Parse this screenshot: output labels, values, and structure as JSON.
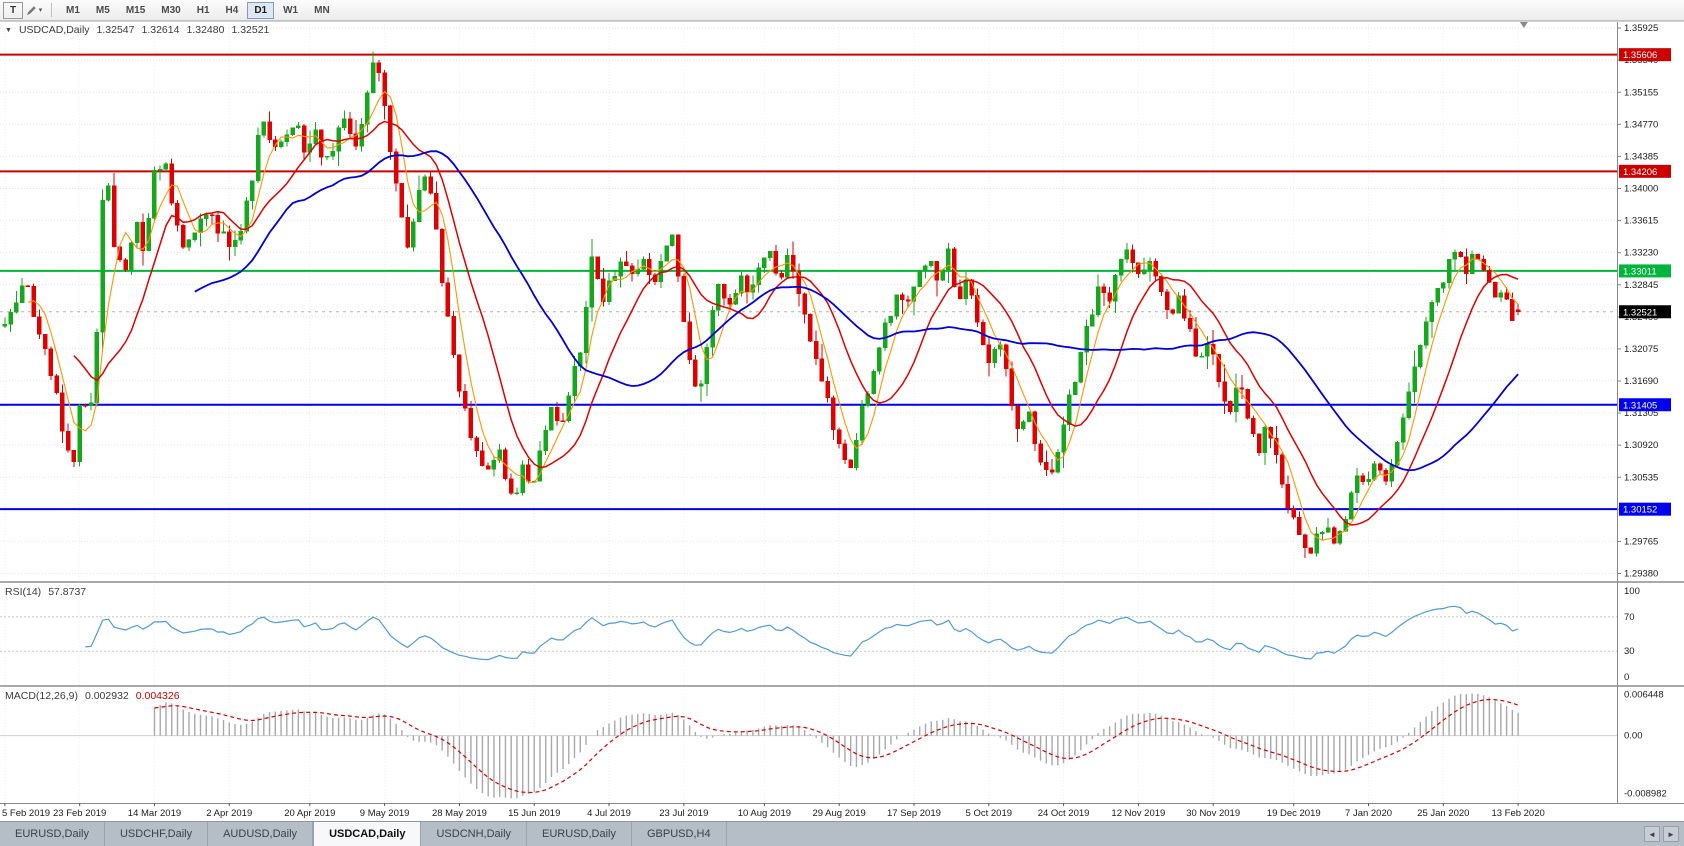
{
  "toolbar": {
    "text_tool_glyph": "T",
    "draw_tool_caret": "▾",
    "timeframes": [
      "M1",
      "M5",
      "M15",
      "M30",
      "H1",
      "H4",
      "D1",
      "W1",
      "MN"
    ],
    "active_timeframe": "D1"
  },
  "chart": {
    "header": {
      "collapse_glyph": "▼",
      "symbol_label": "USDCAD,Daily",
      "open": "1.32547",
      "high": "1.32614",
      "low": "1.32480",
      "close": "1.32521"
    },
    "current_price_label": "1.32521"
  },
  "rsi_panel": {
    "name_label": "RSI(14)",
    "value_label": "57.8737",
    "axis_labels": [
      "100",
      "70",
      "30",
      "0"
    ]
  },
  "macd_panel": {
    "name_label": "MACD(12,26,9)",
    "main_value_label": "0.002932",
    "signal_value_label": "0.004326",
    "axis_labels": [
      "0.006448",
      "0.00",
      "-0.008982"
    ]
  },
  "tabs": {
    "items": [
      "EURUSD,Daily",
      "USDCHF,Daily",
      "AUDUSD,Daily",
      "USDCAD,Daily",
      "USDCNH,Daily",
      "EURUSD,Daily",
      "GBPUSD,H4"
    ],
    "active_index": 3,
    "scroll_left_glyph": "◄",
    "scroll_right_glyph": "►"
  },
  "chart_data": {
    "type": "candlestick",
    "symbol": "USDCAD",
    "timeframe": "Daily",
    "current_price": 1.32521,
    "last_candle": {
      "open": 1.32547,
      "high": 1.32614,
      "low": 1.3248,
      "close": 1.32521
    },
    "y_axis": {
      "min": 1.2929,
      "max": 1.3601,
      "labels": [
        "1.35925",
        "1.35540",
        "1.35155",
        "1.34770",
        "1.34385",
        "1.34000",
        "1.33615",
        "1.33230",
        "1.32845",
        "1.32460",
        "1.32075",
        "1.31690",
        "1.31305",
        "1.30920",
        "1.30535",
        "1.30150",
        "1.29765",
        "1.29380"
      ]
    },
    "x_axis_labels": [
      "5 Feb 2019",
      "23 Feb 2019",
      "14 Mar 2019",
      "2 Apr 2019",
      "20 Apr 2019",
      "9 May 2019",
      "28 May 2019",
      "15 Jun 2019",
      "4 Jul 2019",
      "23 Jul 2019",
      "10 Aug 2019",
      "29 Aug 2019",
      "17 Sep 2019",
      "5 Oct 2019",
      "24 Oct 2019",
      "12 Nov 2019",
      "30 Nov 2019",
      "19 Dec 2019",
      "7 Jan 2020",
      "25 Jan 2020",
      "13 Feb 2020"
    ],
    "levels": [
      {
        "price": 1.35606,
        "label": "1.35606",
        "color": "#cc0000"
      },
      {
        "price": 1.34206,
        "label": "1.34206",
        "color": "#cc0000"
      },
      {
        "price": 1.33011,
        "label": "1.33011",
        "color": "#00b43c"
      },
      {
        "price": 1.31405,
        "label": "1.31405",
        "color": "#0000ee"
      },
      {
        "price": 1.30152,
        "label": "1.30152",
        "color": "#0000ee"
      }
    ],
    "moving_averages": [
      {
        "period": 5,
        "color": "#ff9500"
      },
      {
        "period": 13,
        "color": "#e00000"
      },
      {
        "period": 34,
        "color": "#0000d8"
      }
    ],
    "rsi": {
      "period": 14,
      "value": 57.8737,
      "range": [
        0,
        100
      ],
      "guide_levels": [
        70,
        30
      ],
      "color": "#4f9bd8"
    },
    "macd": {
      "fast": 12,
      "slow": 26,
      "signal": 9,
      "main_value": 0.002932,
      "signal_value": 0.004326,
      "range": [
        -0.0097,
        0.0068
      ],
      "hist_color": "#a8a8a8",
      "signal_color": "#d40000"
    },
    "style": {
      "bull": "#14a81c",
      "bear": "#e00000",
      "current_price_box": "#000000"
    },
    "candle_count": 264,
    "noise_seed": 42,
    "noise_amplitude": 0.0018,
    "wick_amplitude": 0.0022,
    "clamp": [
      1.2936,
      1.3568
    ],
    "price_waypoints": [
      [
        0.0,
        1.3235
      ],
      [
        0.013,
        1.329
      ],
      [
        0.028,
        1.32
      ],
      [
        0.04,
        1.31
      ],
      [
        0.046,
        1.3078
      ],
      [
        0.051,
        1.3158
      ],
      [
        0.056,
        1.3108
      ],
      [
        0.062,
        1.326
      ],
      [
        0.066,
        1.3452
      ],
      [
        0.072,
        1.3335
      ],
      [
        0.079,
        1.329
      ],
      [
        0.086,
        1.3362
      ],
      [
        0.092,
        1.333
      ],
      [
        0.099,
        1.342
      ],
      [
        0.106,
        1.3442
      ],
      [
        0.112,
        1.336
      ],
      [
        0.119,
        1.3322
      ],
      [
        0.125,
        1.3352
      ],
      [
        0.132,
        1.3372
      ],
      [
        0.139,
        1.3356
      ],
      [
        0.145,
        1.334
      ],
      [
        0.152,
        1.3332
      ],
      [
        0.158,
        1.3362
      ],
      [
        0.165,
        1.3425
      ],
      [
        0.17,
        1.3492
      ],
      [
        0.177,
        1.3442
      ],
      [
        0.184,
        1.3462
      ],
      [
        0.191,
        1.3482
      ],
      [
        0.198,
        1.345
      ],
      [
        0.205,
        1.3472
      ],
      [
        0.211,
        1.3432
      ],
      [
        0.218,
        1.3452
      ],
      [
        0.224,
        1.3482
      ],
      [
        0.232,
        1.3442
      ],
      [
        0.239,
        1.3502
      ],
      [
        0.244,
        1.3556
      ],
      [
        0.25,
        1.3508
      ],
      [
        0.255,
        1.344
      ],
      [
        0.261,
        1.3378
      ],
      [
        0.266,
        1.333
      ],
      [
        0.272,
        1.3388
      ],
      [
        0.279,
        1.3418
      ],
      [
        0.285,
        1.3348
      ],
      [
        0.29,
        1.3282
      ],
      [
        0.296,
        1.3202
      ],
      [
        0.301,
        1.315
      ],
      [
        0.307,
        1.3112
      ],
      [
        0.314,
        1.308
      ],
      [
        0.32,
        1.3052
      ],
      [
        0.327,
        1.3092
      ],
      [
        0.333,
        1.304
      ],
      [
        0.338,
        1.3022
      ],
      [
        0.343,
        1.3072
      ],
      [
        0.349,
        1.3042
      ],
      [
        0.355,
        1.3092
      ],
      [
        0.362,
        1.3142
      ],
      [
        0.368,
        1.3112
      ],
      [
        0.375,
        1.3172
      ],
      [
        0.382,
        1.3225
      ],
      [
        0.388,
        1.3312
      ],
      [
        0.395,
        1.3262
      ],
      [
        0.401,
        1.3292
      ],
      [
        0.408,
        1.3322
      ],
      [
        0.415,
        1.3288
      ],
      [
        0.421,
        1.332
      ],
      [
        0.428,
        1.3282
      ],
      [
        0.434,
        1.3312
      ],
      [
        0.441,
        1.3338
      ],
      [
        0.448,
        1.3252
      ],
      [
        0.454,
        1.3172
      ],
      [
        0.459,
        1.3148
      ],
      [
        0.465,
        1.3225
      ],
      [
        0.472,
        1.3282
      ],
      [
        0.479,
        1.3252
      ],
      [
        0.485,
        1.3292
      ],
      [
        0.492,
        1.3272
      ],
      [
        0.498,
        1.3302
      ],
      [
        0.505,
        1.3332
      ],
      [
        0.512,
        1.3292
      ],
      [
        0.518,
        1.3322
      ],
      [
        0.525,
        1.3278
      ],
      [
        0.531,
        1.3232
      ],
      [
        0.538,
        1.3182
      ],
      [
        0.545,
        1.3132
      ],
      [
        0.551,
        1.3088
      ],
      [
        0.558,
        1.3058
      ],
      [
        0.564,
        1.3112
      ],
      [
        0.571,
        1.3162
      ],
      [
        0.578,
        1.3208
      ],
      [
        0.584,
        1.3248
      ],
      [
        0.591,
        1.3282
      ],
      [
        0.597,
        1.3258
      ],
      [
        0.604,
        1.3292
      ],
      [
        0.611,
        1.3312
      ],
      [
        0.617,
        1.3288
      ],
      [
        0.624,
        1.3322
      ],
      [
        0.63,
        1.3262
      ],
      [
        0.637,
        1.3292
      ],
      [
        0.644,
        1.3232
      ],
      [
        0.65,
        1.3188
      ],
      [
        0.657,
        1.3222
      ],
      [
        0.663,
        1.3162
      ],
      [
        0.67,
        1.3108
      ],
      [
        0.677,
        1.3138
      ],
      [
        0.683,
        1.3078
      ],
      [
        0.69,
        1.305
      ],
      [
        0.697,
        1.3092
      ],
      [
        0.703,
        1.3142
      ],
      [
        0.71,
        1.3192
      ],
      [
        0.717,
        1.3242
      ],
      [
        0.723,
        1.3282
      ],
      [
        0.73,
        1.3262
      ],
      [
        0.736,
        1.3302
      ],
      [
        0.743,
        1.3332
      ],
      [
        0.75,
        1.3292
      ],
      [
        0.756,
        1.3322
      ],
      [
        0.763,
        1.3282
      ],
      [
        0.769,
        1.3246
      ],
      [
        0.776,
        1.3272
      ],
      [
        0.783,
        1.3232
      ],
      [
        0.789,
        1.3196
      ],
      [
        0.796,
        1.3222
      ],
      [
        0.802,
        1.3172
      ],
      [
        0.809,
        1.3132
      ],
      [
        0.815,
        1.3166
      ],
      [
        0.822,
        1.3122
      ],
      [
        0.828,
        1.3082
      ],
      [
        0.835,
        1.3116
      ],
      [
        0.841,
        1.3072
      ],
      [
        0.848,
        1.3022
      ],
      [
        0.854,
        1.2982
      ],
      [
        0.861,
        1.2962
      ],
      [
        0.867,
        1.2978
      ],
      [
        0.874,
        1.2996
      ],
      [
        0.88,
        1.2966
      ],
      [
        0.887,
        1.3012
      ],
      [
        0.893,
        1.3062
      ],
      [
        0.9,
        1.3042
      ],
      [
        0.906,
        1.3072
      ],
      [
        0.913,
        1.3052
      ],
      [
        0.92,
        1.3102
      ],
      [
        0.93,
        1.3172
      ],
      [
        0.94,
        1.3242
      ],
      [
        0.95,
        1.3292
      ],
      [
        0.958,
        1.3322
      ],
      [
        0.966,
        1.3302
      ],
      [
        0.972,
        1.333
      ],
      [
        0.978,
        1.3302
      ],
      [
        0.984,
        1.3256
      ],
      [
        0.99,
        1.3292
      ],
      [
        0.996,
        1.3242
      ],
      [
        1.0,
        1.3252
      ]
    ]
  }
}
